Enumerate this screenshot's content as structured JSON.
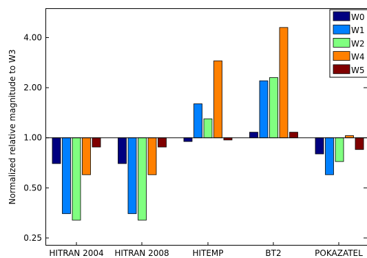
{
  "chart_data": {
    "type": "bar",
    "ylabel": "Normalized relative magnitude to W3",
    "xlabel": "",
    "title": "",
    "y_scale": "log2",
    "ylim": [
      0.225,
      6.0
    ],
    "yticks": [
      0.25,
      0.5,
      1.0,
      2.0,
      4.0
    ],
    "ytick_labels": [
      "0.25",
      "0.50",
      "1.00",
      "2.00",
      "4.00"
    ],
    "baseline": 1.0,
    "categories": [
      "HITRAN 2004",
      "HITRAN 2008",
      "HITEMP",
      "BT2",
      "POKAZATEL"
    ],
    "series": [
      {
        "name": "W0",
        "color": "#000080",
        "values": [
          0.7,
          0.7,
          0.95,
          1.08,
          0.8
        ]
      },
      {
        "name": "W1",
        "color": "#0080ff",
        "values": [
          0.35,
          0.35,
          1.6,
          2.2,
          0.6
        ]
      },
      {
        "name": "W2",
        "color": "#80ff80",
        "values": [
          0.32,
          0.32,
          1.3,
          2.3,
          0.72
        ]
      },
      {
        "name": "W4",
        "color": "#ff8000",
        "values": [
          0.6,
          0.6,
          2.9,
          4.6,
          1.03
        ]
      },
      {
        "name": "W5",
        "color": "#800000",
        "values": [
          0.88,
          0.88,
          0.97,
          1.08,
          0.85
        ]
      }
    ],
    "grid": false,
    "legend_position": "top-right"
  }
}
